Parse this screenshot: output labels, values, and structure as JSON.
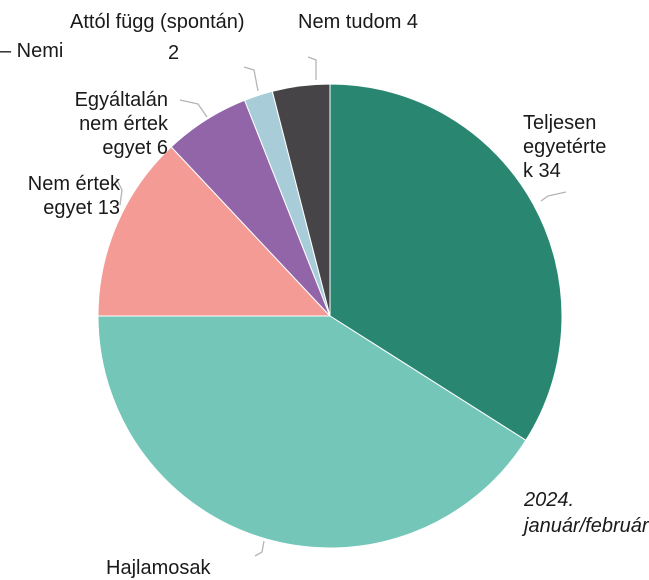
{
  "title_fragment": "– Nemi",
  "title_fragment_2": "2",
  "date_note": "2024. január/február",
  "chart_data": {
    "type": "pie",
    "start_angle_deg": 0,
    "direction": "clockwise",
    "slices": [
      {
        "label": "Teljesen egyetértek",
        "value": 34,
        "color": "#288671"
      },
      {
        "label": "Hajlamosak",
        "value": 41,
        "color": "#74c7b8"
      },
      {
        "label": "Nem értek egyet",
        "value": 13,
        "color": "#f59b95"
      },
      {
        "label": "Egyáltalán nem értek egyet",
        "value": 6,
        "color": "#9265a8"
      },
      {
        "label": "Attól függ (spontán)",
        "value": 2,
        "color": "#a8cdd8"
      },
      {
        "label": "Nem tudom",
        "value": 4,
        "color": "#474448"
      }
    ],
    "labels": {
      "teljesen": [
        "Teljesen",
        "egyetérte",
        "k 34"
      ],
      "hajlamosak": "Hajlamosak",
      "nem_ertek": [
        "Nem értek",
        "egyet 13"
      ],
      "egyaltalan": [
        "Egyáltalán",
        "nem értek",
        "egyet 6"
      ],
      "attol": "Attól függ (spontán)",
      "nem_tudom": "Nem tudom 4"
    }
  }
}
